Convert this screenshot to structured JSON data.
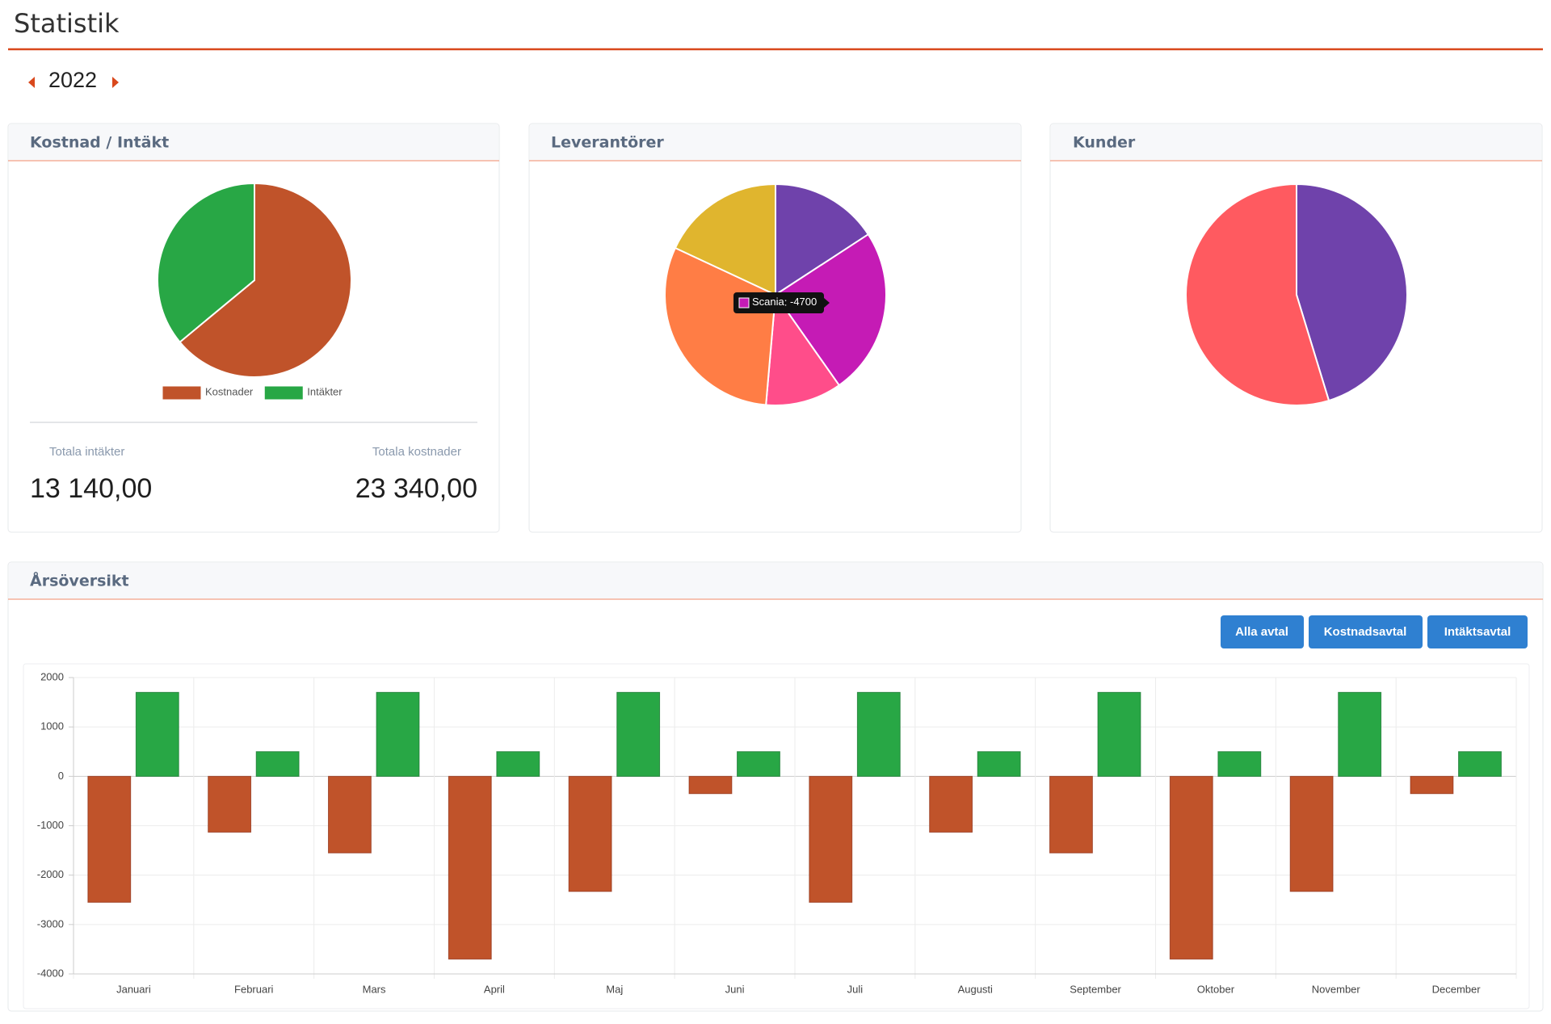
{
  "header": {
    "title": "Statistik",
    "year": "2022"
  },
  "chart_data": [
    {
      "type": "pie",
      "title": "Kostnad / Intäkt",
      "categories": [
        "Kostnader",
        "Intäkter"
      ],
      "values": [
        23340,
        13140
      ],
      "colors": [
        "#c0532a",
        "#28a745"
      ],
      "legend": "bottom"
    },
    {
      "type": "pie",
      "title": "Leverantörer",
      "categories": [
        null,
        "Scania",
        null,
        null,
        null
      ],
      "values": [
        -3040,
        -4700,
        -2140,
        -5880,
        -3470
      ],
      "colors": [
        "#6f42ab",
        "#c51bb5",
        "#ff4d8a",
        "#ff7d45",
        "#e0b52e"
      ]
    },
    {
      "type": "pie",
      "title": "Kunder",
      "categories": [
        null,
        null
      ],
      "values": [
        5950,
        7190
      ],
      "colors": [
        "#6f42ab",
        "#ff5a60"
      ]
    },
    {
      "type": "bar",
      "title": "Årsöversikt",
      "categories": [
        "Januari",
        "Februari",
        "Mars",
        "April",
        "Maj",
        "Juni",
        "Juli",
        "Augusti",
        "September",
        "Oktober",
        "November",
        "December"
      ],
      "series": [
        {
          "color": "#c0532a",
          "values": [
            -2550,
            -1130,
            -1550,
            -3700,
            -2330,
            -350,
            -2550,
            -1130,
            -1550,
            -3700,
            -2330,
            -350
          ]
        },
        {
          "color": "#28a745",
          "values": [
            1700,
            500,
            1700,
            500,
            1700,
            500,
            1700,
            500,
            1700,
            500,
            1700,
            500
          ]
        }
      ],
      "ylim": [
        -4000,
        2000
      ],
      "yticks": [
        -4000,
        -3000,
        -2000,
        -1000,
        0,
        1000,
        2000
      ],
      "grid": true
    }
  ],
  "totals": {
    "income_label": "Totala intäkter",
    "income": "13 140,00",
    "cost_label": "Totala kostnader",
    "cost": "23 340,00"
  },
  "buttons": [
    "Alla avtal",
    "Kostnadsavtal",
    "Intäktsavtal"
  ]
}
